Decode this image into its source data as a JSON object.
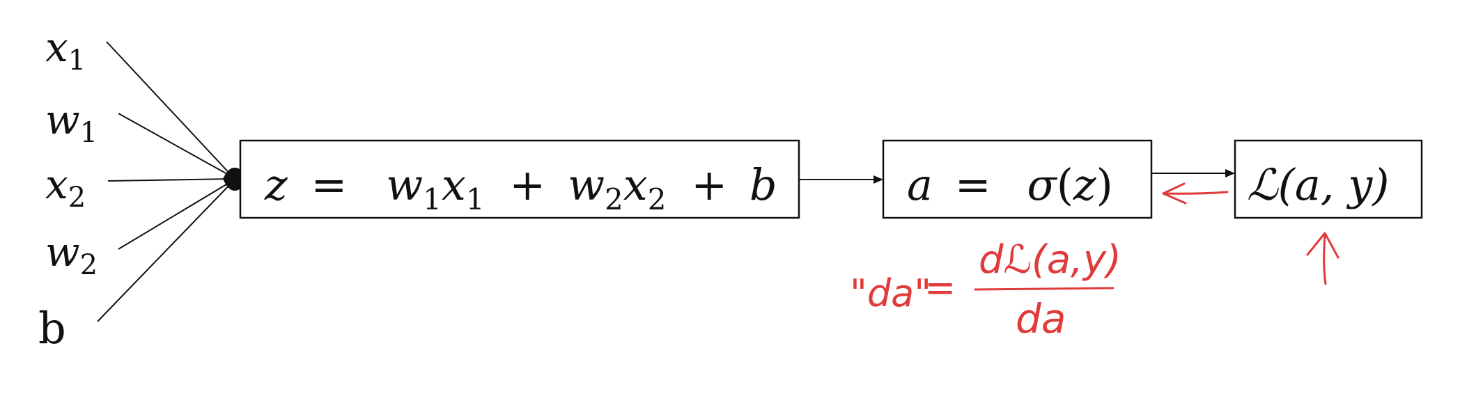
{
  "inputs": {
    "x1": {
      "base": "x",
      "sub": "1"
    },
    "w1": {
      "base": "w",
      "sub": "1"
    },
    "x2": {
      "base": "x",
      "sub": "2"
    },
    "w2": {
      "base": "w",
      "sub": "2"
    },
    "b": {
      "base": "b"
    }
  },
  "linear_node": {
    "z": "z",
    "eq": "=",
    "w1": "w",
    "w1_sub": "1",
    "x1": "x",
    "x1_sub": "1",
    "plus1": "+",
    "w2": "w",
    "w2_sub": "2",
    "x2": "x",
    "x2_sub": "2",
    "plus2": "+",
    "b": "b"
  },
  "activation_node": {
    "a": "a",
    "eq": "=",
    "sigma": "σ",
    "open": "(",
    "z": "z",
    "close": ")"
  },
  "loss_node": {
    "L": "ℒ",
    "args": "(a, y)"
  },
  "annotation": {
    "lhs": "\"da\"",
    "eq": "=",
    "numerator": "dℒ(a,y)",
    "denominator": "da"
  },
  "colors": {
    "ink": "#111111",
    "annotation": "#e03a3a"
  }
}
